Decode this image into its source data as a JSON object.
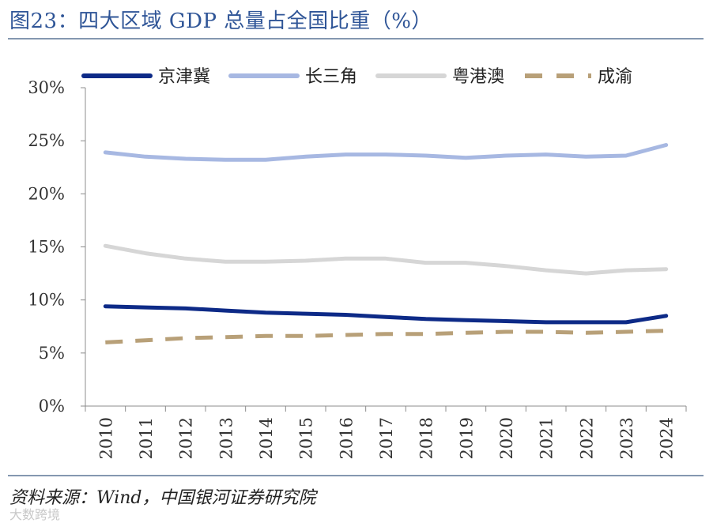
{
  "header": {
    "title": "图23：四大区域 GDP 总量占全国比重（%）"
  },
  "footer": {
    "source": "资料来源：Wind，中国银河证券研究院",
    "watermark": "大数跨境"
  },
  "chart_data": {
    "type": "line",
    "title": "四大区域 GDP 总量占全国比重（%）",
    "categories": [
      "2010",
      "2011",
      "2012",
      "2013",
      "2014",
      "2015",
      "2016",
      "2017",
      "2018",
      "2019",
      "2020",
      "2021",
      "2022",
      "2023",
      "2024"
    ],
    "ylim": [
      0,
      30
    ],
    "yticks": [
      "0%",
      "5%",
      "10%",
      "15%",
      "20%",
      "25%",
      "30%"
    ],
    "ytick_values": [
      0,
      5,
      10,
      15,
      20,
      25,
      30
    ],
    "legend_position": "top",
    "series": [
      {
        "name": "京津冀",
        "color": "#0d2a87",
        "dash": "solid",
        "values": [
          9.4,
          9.3,
          9.2,
          9.0,
          8.8,
          8.7,
          8.6,
          8.4,
          8.2,
          8.1,
          8.0,
          7.9,
          7.9,
          7.9,
          8.5
        ]
      },
      {
        "name": "长三角",
        "color": "#a7b8e2",
        "dash": "solid",
        "values": [
          23.9,
          23.5,
          23.3,
          23.2,
          23.2,
          23.5,
          23.7,
          23.7,
          23.6,
          23.4,
          23.6,
          23.7,
          23.5,
          23.6,
          24.6
        ]
      },
      {
        "name": "粤港澳",
        "color": "#d6d6d6",
        "dash": "solid",
        "values": [
          15.1,
          14.4,
          13.9,
          13.6,
          13.6,
          13.7,
          13.9,
          13.9,
          13.5,
          13.5,
          13.2,
          12.8,
          12.5,
          12.8,
          12.9
        ]
      },
      {
        "name": "成渝",
        "color": "#b8a078",
        "dash": "dashed",
        "values": [
          6.0,
          6.2,
          6.4,
          6.5,
          6.6,
          6.6,
          6.7,
          6.8,
          6.8,
          6.9,
          7.0,
          7.0,
          6.9,
          7.0,
          7.1
        ]
      }
    ]
  }
}
